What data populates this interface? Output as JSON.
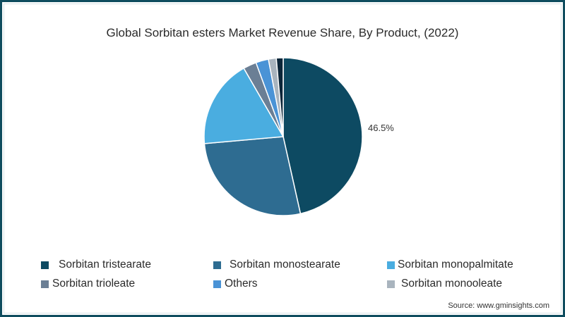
{
  "chart_data": {
    "type": "pie",
    "title": "Global Sorbitan esters Market Revenue Share, By Product, (2022)",
    "start_angle": "12 o'clock, clockwise",
    "slices": [
      {
        "label": "Sorbitan tristearate",
        "value": 46.5,
        "color": "#0d4a62",
        "data_label": "46.5%"
      },
      {
        "label": "Sorbitan monostearate",
        "value": 27.1,
        "color": "#2e6c91",
        "data_label": ""
      },
      {
        "label": "Sorbitan monopalmitate",
        "value": 18.1,
        "color": "#4aade0",
        "data_label": ""
      },
      {
        "label": "Sorbitan trioleate",
        "value": 2.7,
        "color": "#6b7f95",
        "data_label": ""
      },
      {
        "label": "Others",
        "value": 2.6,
        "color": "#4a93d6",
        "data_label": ""
      },
      {
        "label": "Sorbitan monooleate",
        "value": 1.6,
        "color": "#a9b4be",
        "data_label": ""
      },
      {
        "label": "",
        "value": 1.4,
        "color": "#0b2538",
        "data_label": ""
      }
    ],
    "legend": [
      "Sorbitan tristearate",
      "Sorbitan monostearate",
      "Sorbitan monopalmitate",
      "Sorbitan trioleate",
      "Others",
      "Sorbitan monooleate"
    ],
    "legend_position": "bottom"
  },
  "title": "Global Sorbitan esters Market Revenue Share, By Product, (2022)",
  "data_label": "46.5%",
  "legend": [
    {
      "label": "Sorbitan tristearate",
      "color": "#0d4a62"
    },
    {
      "label": "Sorbitan monostearate",
      "color": "#2e6c91"
    },
    {
      "label": "Sorbitan monopalmitate",
      "color": "#4aade0"
    },
    {
      "label": "Sorbitan trioleate",
      "color": "#6b7f95"
    },
    {
      "label": "Others",
      "color": "#4a93d6"
    },
    {
      "label": "Sorbitan monooleate",
      "color": "#a9b4be"
    }
  ],
  "source": "Source: www.gminsights.com",
  "colors": {
    "frame": "#0e4c5e"
  }
}
